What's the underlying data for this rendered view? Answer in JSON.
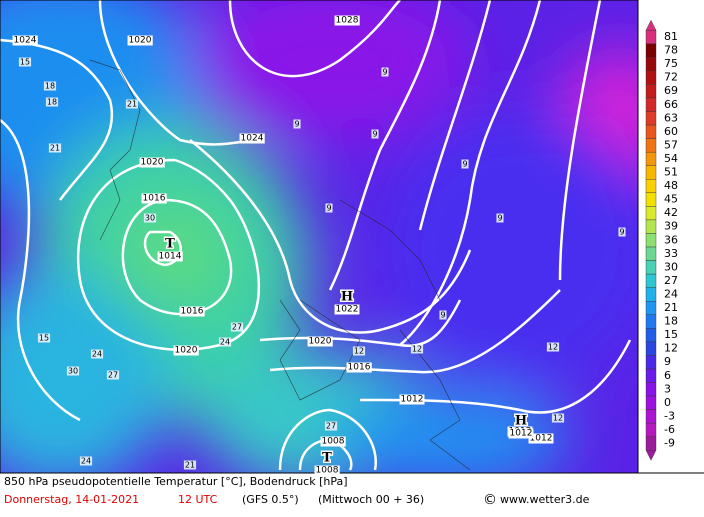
{
  "map": {
    "colorbar": {
      "ticks": [
        81,
        78,
        75,
        72,
        69,
        66,
        63,
        60,
        57,
        54,
        51,
        48,
        45,
        42,
        39,
        36,
        33,
        30,
        27,
        24,
        21,
        18,
        15,
        12,
        9,
        6,
        3,
        0,
        -3,
        -6,
        -9
      ],
      "colors": [
        "#d8307c",
        "#7a0000",
        "#980808",
        "#b01212",
        "#c41c1c",
        "#d22828",
        "#de3a26",
        "#ea561c",
        "#f07414",
        "#f4960a",
        "#f8b600",
        "#fad000",
        "#f2e000",
        "#d8ea2a",
        "#b2e650",
        "#8ce070",
        "#6ad892",
        "#4ad0b2",
        "#2ec6d2",
        "#20b0ea",
        "#2096f2",
        "#2078f0",
        "#205ee8",
        "#2a46e0",
        "#4a2ae8",
        "#6a1aec",
        "#8812e8",
        "#9e10e0",
        "#ae12d2",
        "#b618c0",
        "#9c1a9c"
      ]
    },
    "isobar_labels": [
      "1024",
      "1020",
      "1028",
      "1024",
      "1020",
      "1016",
      "1016",
      "1020",
      "1020",
      "1016",
      "1012",
      "1012",
      "1008",
      "1012"
    ],
    "pressure_centers": [
      {
        "symbol": "T",
        "label": "1014"
      },
      {
        "symbol": "H",
        "label": "1022"
      },
      {
        "symbol": "T",
        "label": "1008"
      },
      {
        "symbol": "H",
        "label": "1012"
      }
    ],
    "temp_labels": [
      "15",
      "18",
      "18",
      "21",
      "21",
      "9",
      "9",
      "9",
      "9",
      "9",
      "9",
      "9",
      "30",
      "27",
      "24",
      "24",
      "30",
      "27",
      "27",
      "24",
      "21",
      "15",
      "12",
      "12",
      "12",
      "9",
      "12"
    ],
    "footer": {
      "title": "850 hPa pseudopotentielle Temperatur [°C], Bodendruck [hPa]",
      "date": "Donnerstag, 14-01-2021",
      "time": "12 UTC",
      "model": "(GFS 0.5°)",
      "run": "(Mittwoch 00 + 36)",
      "copyright": "©",
      "site": "www.wetter3.de"
    }
  }
}
